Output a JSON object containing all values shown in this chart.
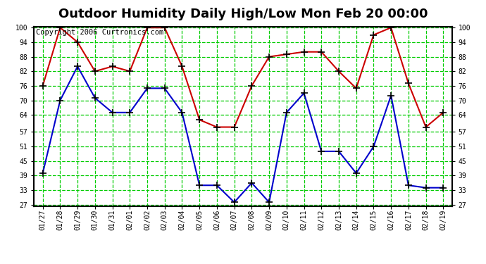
{
  "title": "Outdoor Humidity Daily High/Low Mon Feb 20 00:00",
  "copyright": "Copyright 2006 Curtronics.com",
  "labels": [
    "01/27",
    "01/28",
    "01/29",
    "01/30",
    "01/31",
    "02/01",
    "02/02",
    "02/03",
    "02/04",
    "02/05",
    "02/06",
    "02/07",
    "02/08",
    "02/09",
    "02/10",
    "02/11",
    "02/12",
    "02/13",
    "02/14",
    "02/15",
    "02/16",
    "02/17",
    "02/18",
    "02/19"
  ],
  "high": [
    76,
    100,
    94,
    82,
    84,
    82,
    100,
    100,
    84,
    62,
    59,
    59,
    76,
    88,
    89,
    90,
    90,
    82,
    75,
    97,
    100,
    77,
    59,
    65
  ],
  "low": [
    40,
    70,
    84,
    71,
    65,
    65,
    75,
    75,
    65,
    35,
    35,
    28,
    36,
    28,
    65,
    73,
    49,
    49,
    40,
    51,
    72,
    35,
    34,
    34
  ],
  "high_color": "#cc0000",
  "low_color": "#0000cc",
  "grid_color": "#00cc00",
  "bg_color": "#ffffff",
  "plot_bg": "#ffffff",
  "border_color": "#000000",
  "ymin": 27,
  "ymax": 100,
  "yticks": [
    27,
    33,
    39,
    45,
    51,
    57,
    64,
    70,
    76,
    82,
    88,
    94,
    100
  ],
  "title_fontsize": 13,
  "copyright_fontsize": 7.5
}
